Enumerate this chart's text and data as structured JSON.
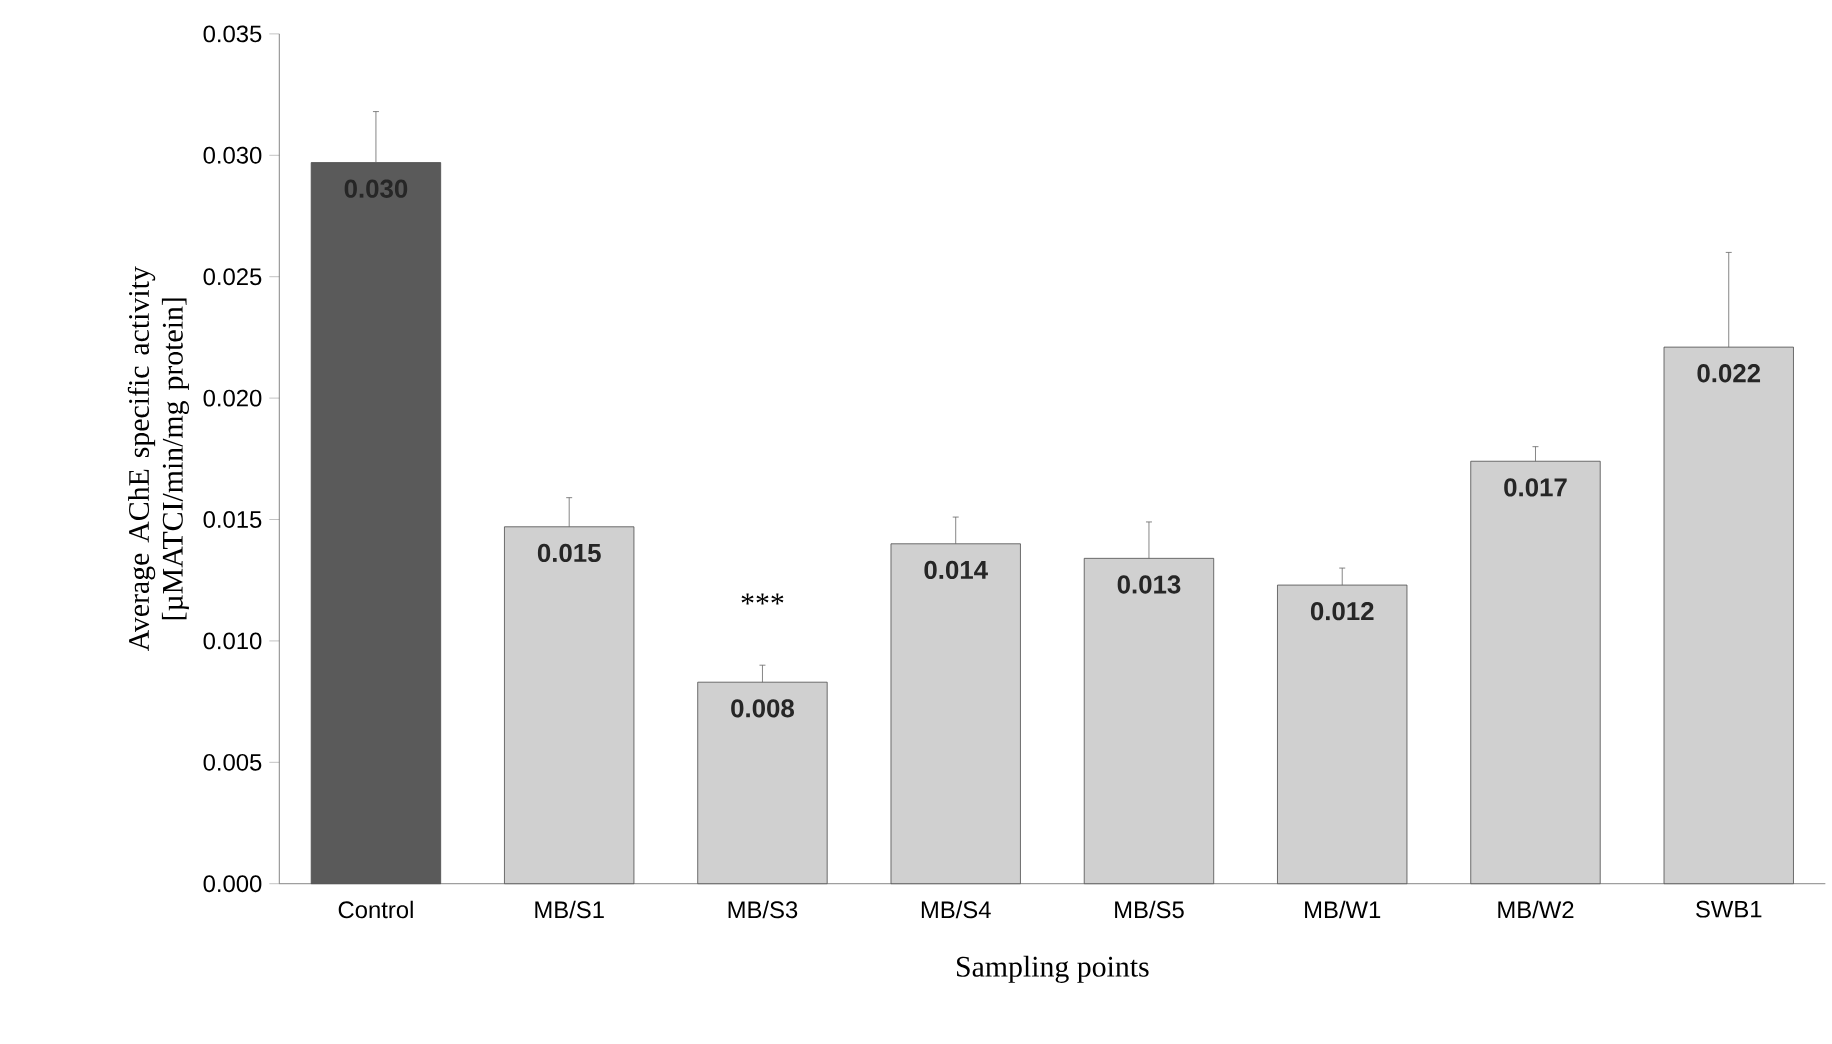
{
  "chart_data": {
    "type": "bar",
    "xlabel": "Sampling points",
    "ylabel": "Average AChE specific activity [µMATCI/min/mg protein]",
    "categories": [
      "Control",
      "MB/S1",
      "MB/S3",
      "MB/S4",
      "MB/S5",
      "MB/W1",
      "MB/W2",
      "SWB1"
    ],
    "values": [
      0.0297,
      0.0147,
      0.0083,
      0.014,
      0.0134,
      0.0123,
      0.0174,
      0.0221
    ],
    "value_labels": [
      "0.030",
      "0.015",
      "0.008",
      "0.014",
      "0.013",
      "0.012",
      "0.017",
      "0.022"
    ],
    "errors": [
      [
        0.0297,
        0.0318
      ],
      [
        0.0147,
        0.0159
      ],
      [
        0.0083,
        0.009
      ],
      [
        0.014,
        0.0151
      ],
      [
        0.0134,
        0.0149
      ],
      [
        0.0123,
        0.013
      ],
      [
        0.0174,
        0.018
      ],
      [
        0.0221,
        0.026
      ]
    ],
    "colors": [
      "#5a5a5a",
      "#d0d0d0",
      "#d0d0d0",
      "#d0d0d0",
      "#d0d0d0",
      "#d0d0d0",
      "#d0d0d0",
      "#d0d0d0"
    ],
    "ylim": [
      0,
      0.035
    ],
    "yticks": [
      {
        "value": 0,
        "label": "0.000"
      },
      {
        "value": 0.005,
        "label": "0.005"
      },
      {
        "value": 0.01,
        "label": "0.010"
      },
      {
        "value": 0.015,
        "label": "0.015"
      },
      {
        "value": 0.02,
        "label": "0.020"
      },
      {
        "value": 0.025,
        "label": "0.025"
      },
      {
        "value": 0.03,
        "label": "0.030"
      },
      {
        "value": 0.035,
        "label": "0.035"
      }
    ],
    "annotations": [
      "***"
    ],
    "grid": false
  }
}
